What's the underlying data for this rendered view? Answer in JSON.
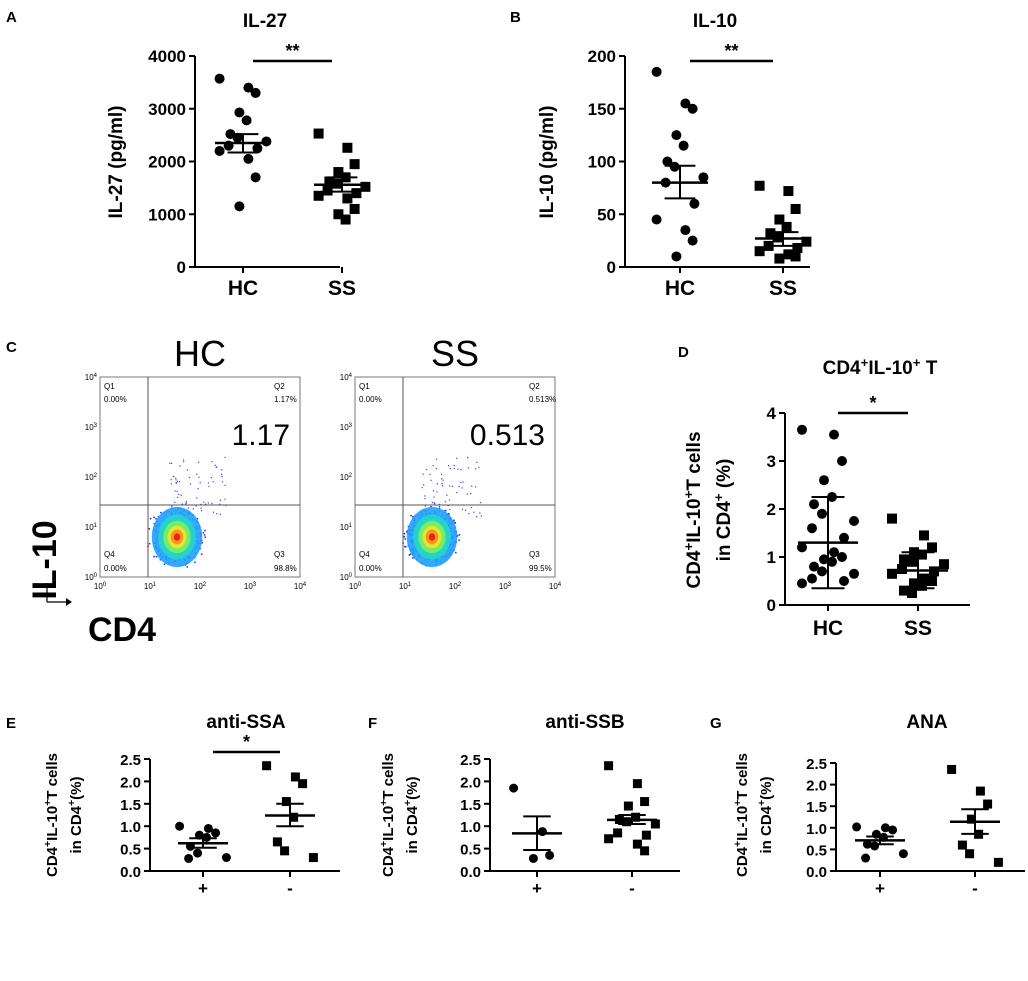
{
  "figure": {
    "panel_letters": [
      "A",
      "B",
      "C",
      "D",
      "E",
      "F",
      "G"
    ]
  },
  "chart_data": [
    {
      "panel": "A",
      "type": "scatter",
      "title": "IL-27",
      "xlabel": "",
      "ylabel": "IL-27 (pg/ml)",
      "categories": [
        "HC",
        "SS"
      ],
      "ylim": [
        0,
        4000
      ],
      "yticks": [
        "0",
        "1000",
        "2000",
        "3000",
        "4000"
      ],
      "series": [
        {
          "name": "HC",
          "marker": "circle",
          "mean": 2350,
          "sem_low": 2170,
          "sem_high": 2520,
          "values": [
            3570,
            3400,
            3300,
            2930,
            2780,
            2520,
            2450,
            2380,
            2300,
            2250,
            2200,
            2050,
            1700,
            1150
          ]
        },
        {
          "name": "SS",
          "marker": "square",
          "mean": 1560,
          "sem_low": 1430,
          "sem_high": 1700,
          "values": [
            2530,
            2260,
            1950,
            1800,
            1700,
            1620,
            1580,
            1520,
            1450,
            1400,
            1350,
            1300,
            1100,
            1000,
            900
          ]
        }
      ],
      "significance": "**"
    },
    {
      "panel": "B",
      "type": "scatter",
      "title": "IL-10",
      "xlabel": "",
      "ylabel": "IL-10 (pg/ml)",
      "categories": [
        "HC",
        "SS"
      ],
      "ylim": [
        0,
        200
      ],
      "yticks": [
        "0",
        "50",
        "100",
        "150",
        "200"
      ],
      "series": [
        {
          "name": "HC",
          "marker": "circle",
          "mean": 80,
          "sem_low": 65,
          "sem_high": 96,
          "values": [
            185,
            155,
            150,
            125,
            115,
            100,
            95,
            85,
            80,
            60,
            45,
            35,
            25,
            10
          ]
        },
        {
          "name": "SS",
          "marker": "square",
          "mean": 27,
          "sem_low": 20,
          "sem_high": 33,
          "values": [
            77,
            72,
            55,
            45,
            38,
            32,
            28,
            24,
            20,
            18,
            15,
            12,
            10,
            8
          ]
        }
      ],
      "significance": "**"
    },
    {
      "panel": "C",
      "type": "flow-cytometry",
      "x_axis_label": "CD4",
      "y_axis_label": "IL-10",
      "axis_ticks": [
        "10",
        "10",
        "10",
        "10",
        "10"
      ],
      "axis_exponents": [
        "0",
        "1",
        "2",
        "3",
        "4"
      ],
      "plots": [
        {
          "title": "HC",
          "big_value": "1.17",
          "q1": "Q1",
          "q1_pct": "0.00%",
          "q2": "Q2",
          "q2_pct": "1.17%",
          "q3": "Q3",
          "q3_pct": "98.8%",
          "q4": "Q4",
          "q4_pct": "0.00%"
        },
        {
          "title": "SS",
          "big_value": "0.513",
          "q1": "Q1",
          "q1_pct": "0.00%",
          "q2": "Q2",
          "q2_pct": "0.513%",
          "q3": "Q3",
          "q3_pct": "99.5%",
          "q4": "Q4",
          "q4_pct": "0.00%"
        }
      ]
    },
    {
      "panel": "D",
      "type": "scatter",
      "title_parts": [
        "CD4",
        "+",
        "IL-10",
        "+",
        " T"
      ],
      "ylabel_parts": [
        "CD4",
        "+",
        "IL-10",
        "+",
        "T cells"
      ],
      "ylabel_line2_parts": [
        "in CD4",
        "+",
        " (%)"
      ],
      "categories": [
        "HC",
        "SS"
      ],
      "ylim": [
        0,
        4
      ],
      "yticks": [
        "0",
        "1",
        "2",
        "3",
        "4"
      ],
      "series": [
        {
          "name": "HC",
          "marker": "circle",
          "mean": 1.3,
          "sd_low": 0.35,
          "sd_high": 2.25,
          "values": [
            3.65,
            3.55,
            3.0,
            2.6,
            2.25,
            2.1,
            1.9,
            1.75,
            1.6,
            1.4,
            1.2,
            1.1,
            1.0,
            0.95,
            0.9,
            0.8,
            0.7,
            0.65,
            0.55,
            0.5,
            0.45
          ]
        },
        {
          "name": "SS",
          "marker": "square",
          "mean": 0.72,
          "sd_low": 0.35,
          "sd_high": 1.1,
          "values": [
            1.8,
            1.45,
            1.2,
            1.1,
            1.05,
            0.95,
            0.9,
            0.85,
            0.75,
            0.7,
            0.65,
            0.55,
            0.5,
            0.45,
            0.4,
            0.3,
            0.25
          ]
        }
      ],
      "significance": "*"
    },
    {
      "panel": "E",
      "type": "scatter",
      "title": "anti-SSA",
      "ylabel_parts": [
        "CD4",
        "+",
        "IL-10",
        "+",
        "T cells"
      ],
      "ylabel_line2_parts": [
        "in CD4",
        "+",
        "(%)"
      ],
      "categories": [
        "+",
        "-"
      ],
      "ylim": [
        0,
        2.5
      ],
      "yticks": [
        "0.0",
        "0.5",
        "1.0",
        "1.5",
        "2.0",
        "2.5"
      ],
      "series": [
        {
          "name": "+",
          "marker": "circle",
          "mean": 0.62,
          "sem_low": 0.52,
          "sem_high": 0.73,
          "values": [
            1.0,
            0.95,
            0.85,
            0.8,
            0.75,
            0.55,
            0.4,
            0.3,
            0.28
          ]
        },
        {
          "name": "-",
          "marker": "square",
          "mean": 1.24,
          "sem_low": 1.0,
          "sem_high": 1.5,
          "values": [
            2.35,
            2.1,
            1.95,
            1.55,
            1.2,
            0.65,
            0.45,
            0.3
          ]
        }
      ],
      "significance": "*"
    },
    {
      "panel": "F",
      "type": "scatter",
      "title": "anti-SSB",
      "ylabel_parts": [
        "CD4",
        "+",
        "IL-10",
        "+",
        "T cells"
      ],
      "ylabel_line2_parts": [
        "in CD4",
        "+",
        "(%)"
      ],
      "categories": [
        "+",
        "-"
      ],
      "ylim": [
        0,
        2.5
      ],
      "yticks": [
        "0.0",
        "0.5",
        "1.0",
        "1.5",
        "2.0",
        "2.5"
      ],
      "series": [
        {
          "name": "+",
          "marker": "circle",
          "mean": 0.84,
          "sem_low": 0.47,
          "sem_high": 1.22,
          "values": [
            1.85,
            0.88,
            0.35,
            0.28
          ]
        },
        {
          "name": "-",
          "marker": "square",
          "mean": 1.14,
          "sem_low": 1.05,
          "sem_high": 1.25,
          "values": [
            2.35,
            1.95,
            1.55,
            1.45,
            1.2,
            1.15,
            1.1,
            1.05,
            0.85,
            0.8,
            0.72,
            0.6,
            0.45
          ]
        }
      ]
    },
    {
      "panel": "G",
      "type": "scatter",
      "title": "ANA",
      "ylabel_parts": [
        "CD4",
        "+",
        "IL-10",
        "+",
        "T cells"
      ],
      "ylabel_line2_parts": [
        "in CD4",
        "+",
        "(%)"
      ],
      "categories": [
        "+",
        "-"
      ],
      "ylim": [
        0,
        2.5
      ],
      "yticks": [
        "0.0",
        "0.5",
        "1.0",
        "1.5",
        "2.0",
        "2.5"
      ],
      "series": [
        {
          "name": "+",
          "marker": "circle",
          "mean": 0.71,
          "sem_low": 0.62,
          "sem_high": 0.8,
          "values": [
            1.02,
            1.0,
            0.95,
            0.85,
            0.78,
            0.62,
            0.58,
            0.4,
            0.3
          ]
        },
        {
          "name": "-",
          "marker": "square",
          "mean": 1.14,
          "sem_low": 0.86,
          "sem_high": 1.43,
          "values": [
            2.35,
            1.85,
            1.55,
            1.2,
            0.85,
            0.6,
            0.4,
            0.2
          ]
        }
      ]
    }
  ]
}
